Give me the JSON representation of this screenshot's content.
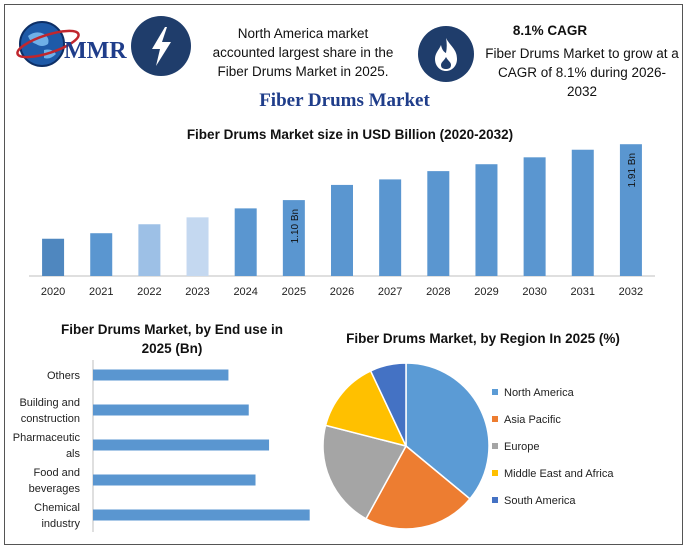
{
  "logo": {
    "text": "MMR",
    "icon": "globe-icon"
  },
  "info_left": {
    "icon": "lightning-icon",
    "text": "North America market accounted largest share in the Fiber Drums Market in 2025."
  },
  "info_right": {
    "icon": "flame-icon",
    "title": "8.1% CAGR",
    "text": "Fiber Drums Market to grow at a CAGR of 8.1% during 2026-2032"
  },
  "main_title": "Fiber Drums Market",
  "chart_data": [
    {
      "type": "bar",
      "title": "Fiber Drums Market size in USD Billion (2020-2032)",
      "categories": [
        "2020",
        "2021",
        "2022",
        "2023",
        "2024",
        "2025",
        "2026",
        "2027",
        "2028",
        "2029",
        "2030",
        "2031",
        "2032"
      ],
      "values": [
        0.54,
        0.62,
        0.75,
        0.85,
        0.98,
        1.1,
        1.32,
        1.4,
        1.52,
        1.62,
        1.72,
        1.83,
        1.91
      ],
      "colors": [
        "#4f87bf",
        "#5a96d0",
        "#9dc0e6",
        "#c4d8f0",
        "#5a96d0",
        "#5a96d0",
        "#5a96d0",
        "#5a96d0",
        "#5a96d0",
        "#5a96d0",
        "#5a96d0",
        "#5a96d0",
        "#5a96d0"
      ],
      "data_labels": {
        "2025": "1.10 Bn",
        "2032": "1.91 Bn"
      },
      "ylim": [
        0,
        2.0
      ],
      "grid": false
    },
    {
      "type": "bar",
      "orientation": "horizontal",
      "title": "Fiber Drums Market, by End use in 2025 (Bn)",
      "categories": [
        {
          "lines": [
            "Others"
          ]
        },
        {
          "lines": [
            "Building and",
            "construction"
          ]
        },
        {
          "lines": [
            "Pharmaceutic",
            "als"
          ]
        },
        {
          "lines": [
            "Food and",
            "beverages"
          ]
        },
        {
          "lines": [
            "Chemical",
            "industry"
          ]
        }
      ],
      "values": [
        0.2,
        0.23,
        0.26,
        0.24,
        0.32
      ],
      "xlim": [
        0,
        0.35
      ],
      "color": "#5a96d0"
    },
    {
      "type": "pie",
      "title": "Fiber Drums Market, by Region In 2025 (%)",
      "labels": [
        "North America",
        "Asia Pacific",
        "Europe",
        "Middle East and Africa",
        "South America"
      ],
      "values": [
        36,
        22,
        21,
        14,
        7
      ],
      "colors": [
        "#5b9bd5",
        "#ed7d31",
        "#a5a5a5",
        "#ffc000",
        "#4472c4"
      ],
      "legend": "right"
    }
  ]
}
